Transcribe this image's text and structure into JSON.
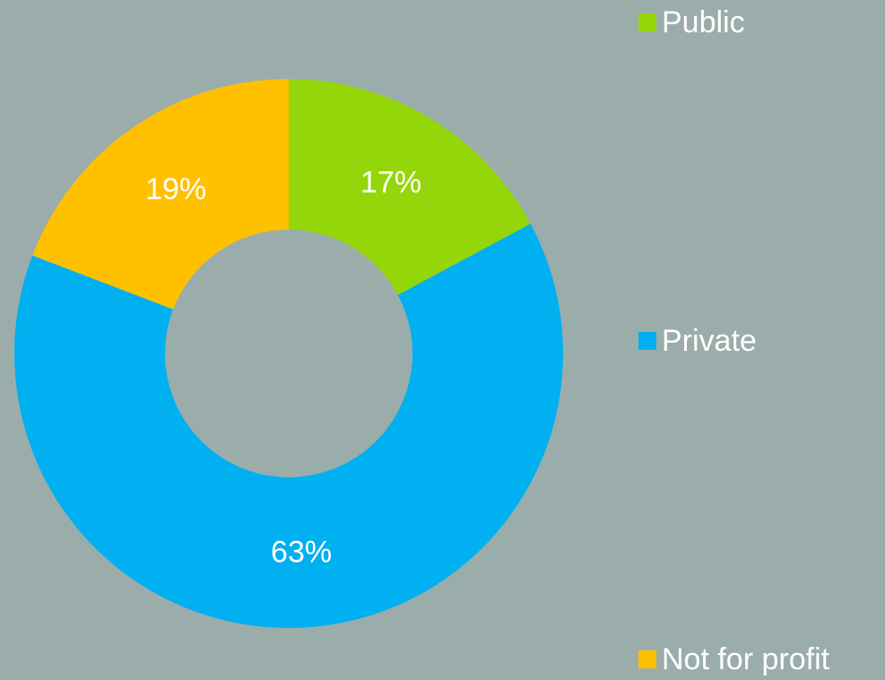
{
  "chart_data": {
    "type": "pie",
    "donut": true,
    "categories": [
      "Public",
      "Private",
      "Not for profit"
    ],
    "values": [
      17,
      63,
      19
    ],
    "labels": [
      "17%",
      "63%",
      "19%"
    ],
    "colors": [
      "#95d60a",
      "#00b0f0",
      "#ffc000"
    ],
    "legend_position": "right",
    "title": ""
  }
}
